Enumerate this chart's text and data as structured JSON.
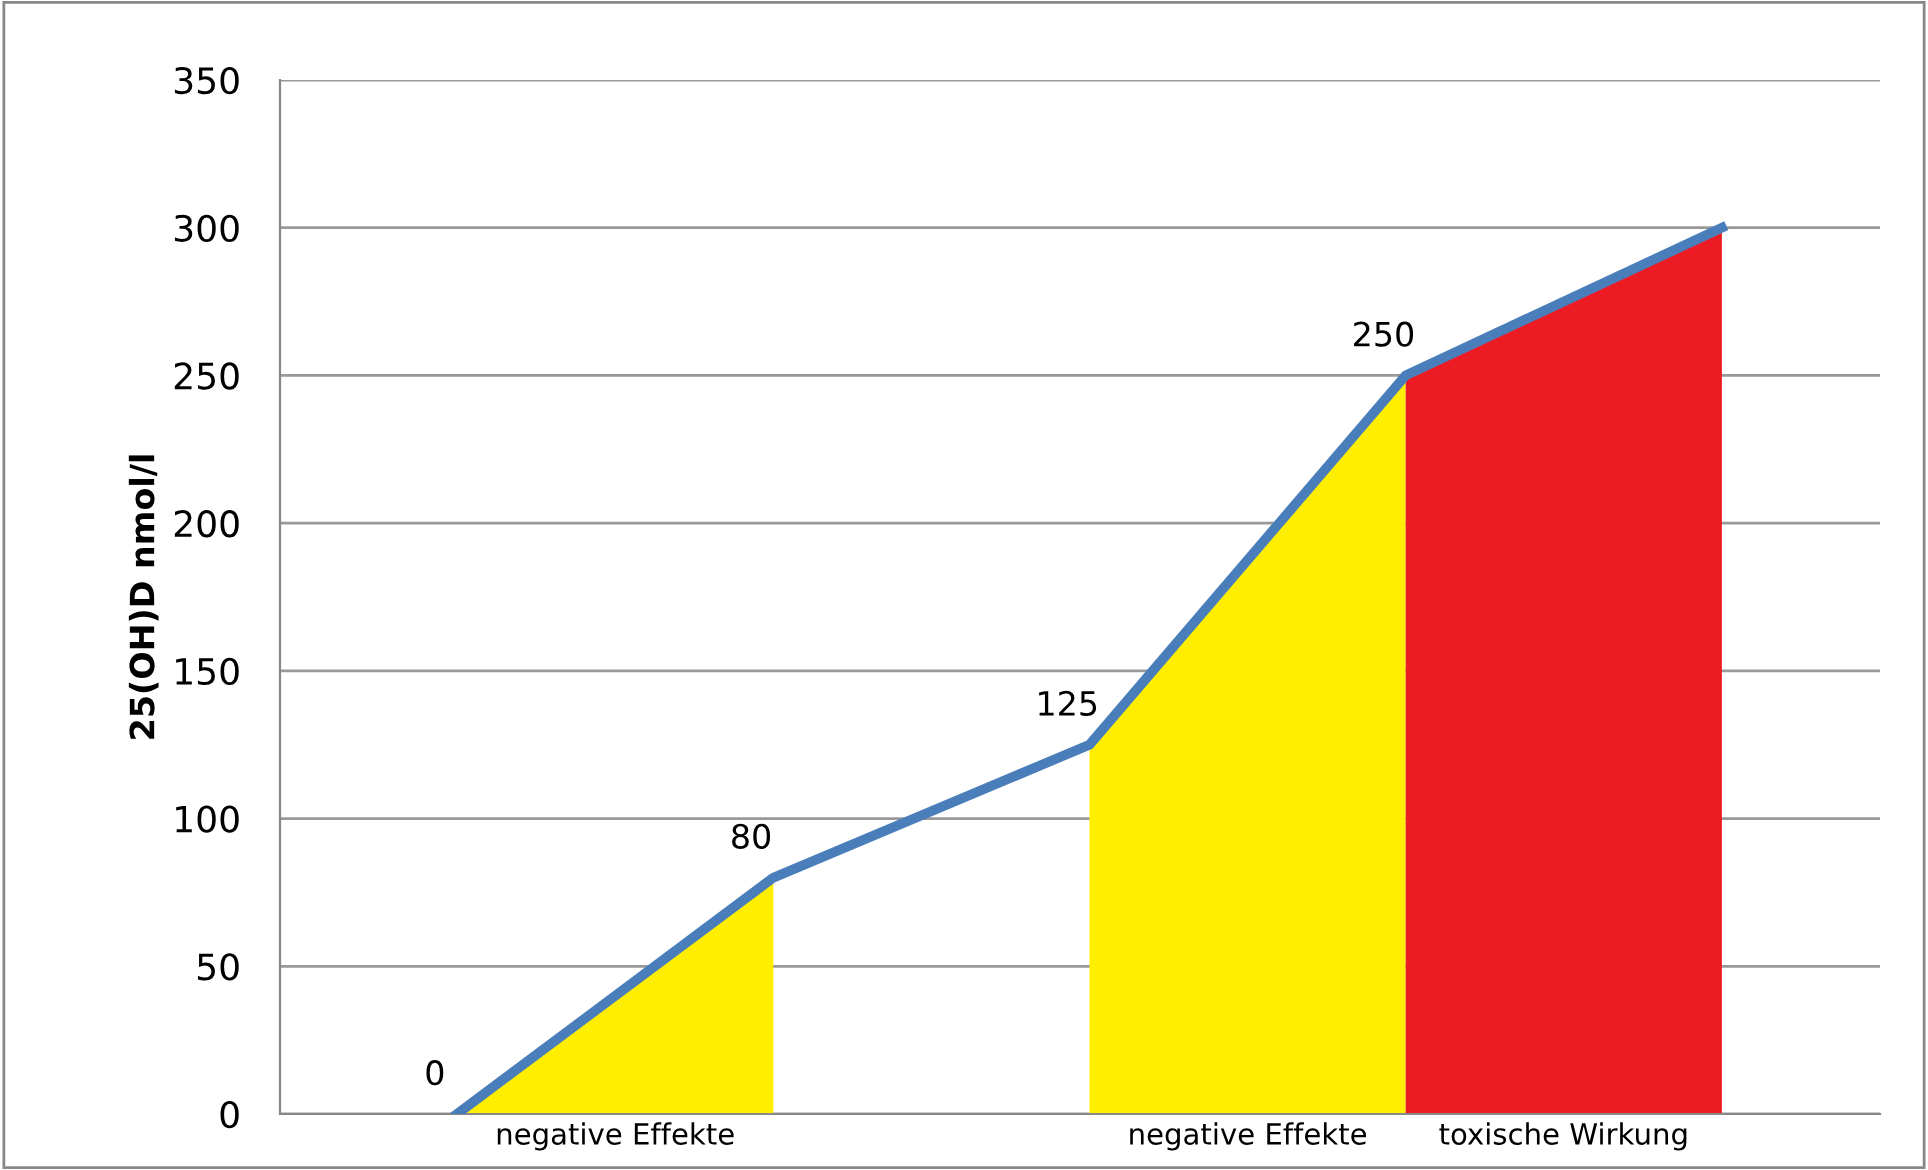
{
  "chart_data": {
    "type": "line",
    "ylabel": "25(OH)D nmol/l",
    "categories": [
      null,
      null,
      null,
      null,
      null
    ],
    "series": [
      {
        "type": "area",
        "name": "negative Effekte",
        "color": "#ffee00",
        "values": [
          0,
          80,
          null,
          null,
          null
        ]
      },
      {
        "type": "area",
        "name": "negative Effekte",
        "color": "#ffee00",
        "values": [
          null,
          null,
          125,
          250,
          null
        ]
      },
      {
        "type": "area",
        "name": "toxische Wirkung",
        "color": "#ed1c24",
        "values": [
          null,
          null,
          null,
          250,
          300
        ]
      },
      {
        "color": "#4a7ebb",
        "values": [
          0,
          80,
          125,
          250,
          300
        ],
        "value_labels": [
          "0",
          "80",
          "125",
          "250",
          null
        ]
      }
    ],
    "ylim": [
      0,
      350
    ],
    "yticks": [
      0,
      50,
      100,
      150,
      200,
      250,
      300,
      350
    ],
    "grid": "y",
    "tick_labels": "y"
  }
}
